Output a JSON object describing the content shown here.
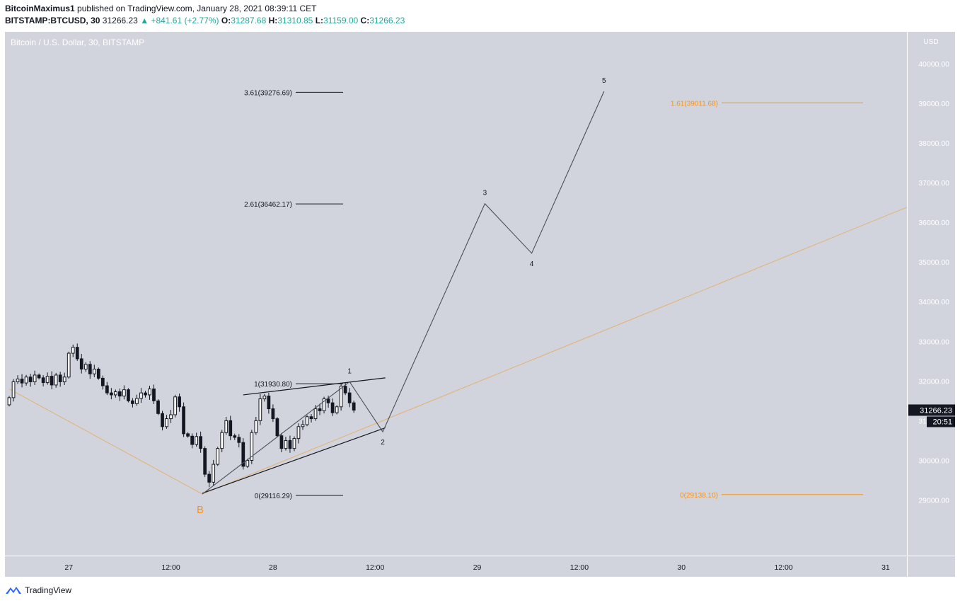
{
  "header": {
    "author": "BitcoinMaximus1",
    "published_text": "published on TradingView.com, January 28, 2021 08:39:11 CET"
  },
  "ticker_row": {
    "symbol": "BITSTAMP:BTCUSD, 30",
    "price": "31266.23",
    "arrow": "▲",
    "change": "+841.61 (+2.77%)",
    "o_label": "O:",
    "o": "31287.68",
    "h_label": "H:",
    "h": "31310.85",
    "l_label": "L:",
    "l": "31159.00",
    "c_label": "C:",
    "c": "31266.23"
  },
  "footer": {
    "brand": "TradingView",
    "logo_icon": "tradingview-logo-icon"
  },
  "colors": {
    "pane_bg": "#d1d4dc",
    "up": "#ffffff",
    "down": "#131722",
    "orange": "#f7931a",
    "fib_black": "#131722",
    "price_tag": "#131722"
  },
  "chart_data": {
    "type": "candlestick",
    "title": "Bitcoin / U.S. Dollar, 30, BITSTAMP",
    "currency_label": "USD",
    "y_ticks": [
      "29000.00",
      "30000.00",
      "31000.00",
      "32000.00",
      "33000.00",
      "34000.00",
      "35000.00",
      "36000.00",
      "37000.00",
      "38000.00",
      "39000.00",
      "40000.00"
    ],
    "ylim": [
      27600,
      40800
    ],
    "x_ticks": [
      "27",
      "12:00",
      "28",
      "12:00",
      "29",
      "12:00",
      "30",
      "12:00",
      "31"
    ],
    "x_tick_times": [
      24,
      36,
      48,
      60,
      72,
      84,
      96,
      108,
      120
    ],
    "xlim": [
      16.5,
      122.5
    ],
    "last_price": "31266.23",
    "countdown": "20:51",
    "candles_close_path": [
      [
        17.0,
        31580
      ],
      [
        17.5,
        31980
      ],
      [
        18.0,
        32050
      ],
      [
        18.5,
        31950
      ],
      [
        19.0,
        32100
      ],
      [
        19.5,
        31980
      ],
      [
        20.0,
        32150
      ],
      [
        20.5,
        32080
      ],
      [
        21.0,
        31960
      ],
      [
        21.5,
        32120
      ],
      [
        22.0,
        31900
      ],
      [
        22.5,
        32150
      ],
      [
        23.0,
        31980
      ],
      [
        23.5,
        32100
      ],
      [
        24.0,
        32700
      ],
      [
        24.5,
        32850
      ],
      [
        25.0,
        32560
      ],
      [
        25.5,
        32300
      ],
      [
        26.0,
        32420
      ],
      [
        26.5,
        32180
      ],
      [
        27.0,
        32300
      ],
      [
        27.5,
        32070
      ],
      [
        28.0,
        31880
      ],
      [
        28.5,
        31700
      ],
      [
        29.0,
        31650
      ],
      [
        29.5,
        31730
      ],
      [
        30.0,
        31620
      ],
      [
        30.5,
        31780
      ],
      [
        31.0,
        31500
      ],
      [
        31.5,
        31430
      ],
      [
        32.0,
        31560
      ],
      [
        32.5,
        31700
      ],
      [
        33.0,
        31650
      ],
      [
        33.5,
        31800
      ],
      [
        34.0,
        31500
      ],
      [
        34.5,
        31180
      ],
      [
        35.0,
        30850
      ],
      [
        35.5,
        31050
      ],
      [
        36.0,
        31150
      ],
      [
        36.5,
        31600
      ],
      [
        37.0,
        31350
      ],
      [
        37.5,
        30670
      ],
      [
        38.0,
        30610
      ],
      [
        38.5,
        30400
      ],
      [
        39.0,
        30600
      ],
      [
        39.5,
        30300
      ],
      [
        40.0,
        29650
      ],
      [
        40.5,
        29450
      ],
      [
        41.0,
        29900
      ],
      [
        41.5,
        30300
      ],
      [
        42.0,
        30700
      ],
      [
        42.5,
        31000
      ],
      [
        43.0,
        30620
      ],
      [
        43.5,
        30580
      ],
      [
        44.0,
        30450
      ],
      [
        44.5,
        29850
      ],
      [
        45.0,
        30000
      ],
      [
        45.5,
        30700
      ],
      [
        46.0,
        31000
      ],
      [
        46.5,
        31550
      ],
      [
        47.0,
        31620
      ],
      [
        47.5,
        31300
      ],
      [
        48.0,
        31050
      ],
      [
        48.5,
        30620
      ],
      [
        49.0,
        30300
      ],
      [
        49.5,
        30500
      ],
      [
        50.0,
        30300
      ],
      [
        50.5,
        30550
      ],
      [
        51.0,
        30850
      ],
      [
        51.5,
        30900
      ],
      [
        52.0,
        31100
      ],
      [
        52.5,
        31050
      ],
      [
        53.0,
        31300
      ],
      [
        53.5,
        31250
      ],
      [
        54.0,
        31550
      ],
      [
        54.5,
        31450
      ],
      [
        55.0,
        31200
      ],
      [
        55.5,
        31350
      ],
      [
        56.0,
        31870
      ],
      [
        56.5,
        31700
      ],
      [
        57.0,
        31450
      ],
      [
        57.5,
        31266
      ]
    ],
    "fib_left": [
      {
        "label": "3.61(39276.69)",
        "value": 39276.69
      },
      {
        "label": "2.61(36462.17)",
        "value": 36462.17
      },
      {
        "label": "1(31930.80)",
        "value": 31930.8
      },
      {
        "label": "0(29116.29)",
        "value": 29116.29
      }
    ],
    "fib_right": [
      {
        "label": "1.61(39011.68)",
        "value": 39011.68
      },
      {
        "label": "0(29138.10)",
        "value": 29138.1
      }
    ],
    "waves": [
      {
        "label": "1",
        "t": 57.0,
        "v": 31980
      },
      {
        "label": "2",
        "t": 60.9,
        "v": 30720
      },
      {
        "label": "3",
        "t": 72.9,
        "v": 36470
      },
      {
        "label": "4",
        "t": 78.4,
        "v": 35220
      },
      {
        "label": "5",
        "t": 86.9,
        "v": 39300
      }
    ],
    "b_label": "B",
    "b_point": [
      39.7,
      29150
    ],
    "orange_diagonal": [
      [
        17.0,
        31800
      ],
      [
        39.7,
        29150
      ],
      [
        122.5,
        36380
      ]
    ],
    "wedge_upper": [
      [
        44.5,
        31650
      ],
      [
        61.2,
        32080
      ]
    ],
    "wedge_lower": [
      [
        39.7,
        29170
      ],
      [
        61.2,
        30820
      ]
    ]
  }
}
